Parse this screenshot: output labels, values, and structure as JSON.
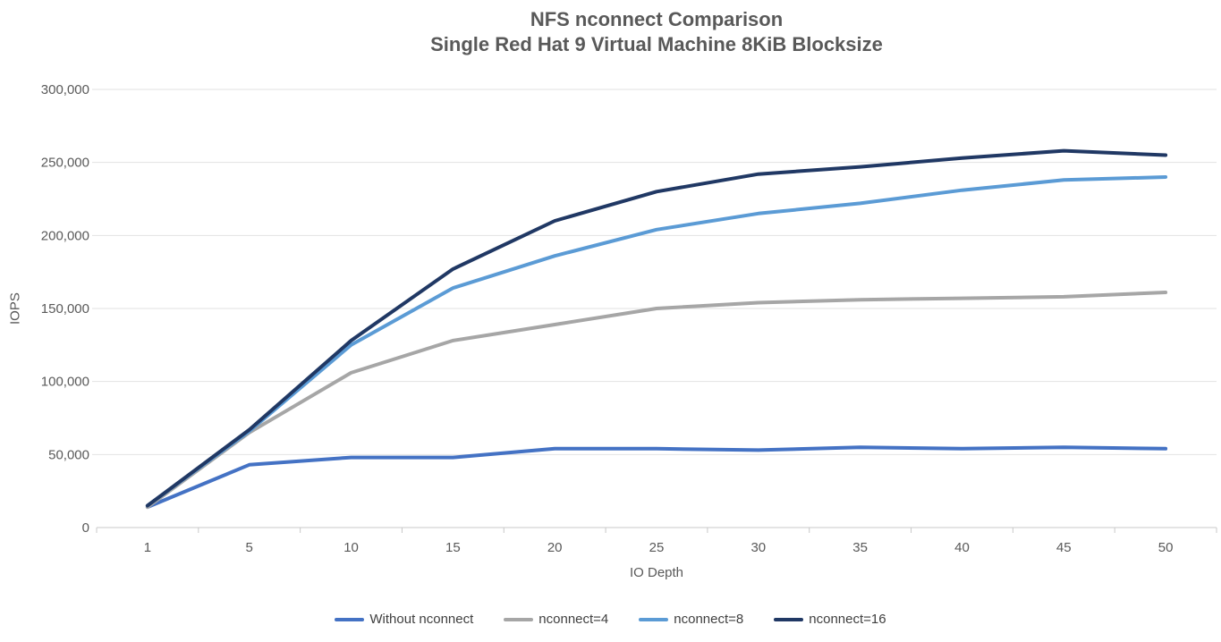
{
  "chart": {
    "title_line1": "NFS nconnect Comparison",
    "title_line2": "Single Red Hat 9 Virtual Machine 8KiB Blocksize",
    "xlabel": "IO Depth",
    "ylabel": "IOPS"
  },
  "chart_data": {
    "type": "line",
    "title": "NFS nconnect Comparison",
    "subtitle": "Single Red Hat 9 Virtual Machine 8KiB Blocksize",
    "xlabel": "IO Depth",
    "ylabel": "IOPS",
    "categories": [
      1,
      5,
      10,
      15,
      20,
      25,
      30,
      35,
      40,
      45,
      50
    ],
    "series": [
      {
        "name": "Without nconnect",
        "color": "#4472C4",
        "values": [
          14000,
          43000,
          48000,
          48000,
          54000,
          54000,
          53000,
          55000,
          54000,
          55000,
          54000
        ]
      },
      {
        "name": "nconnect=4",
        "color": "#A6A6A6",
        "values": [
          14000,
          65000,
          106000,
          128000,
          139000,
          150000,
          154000,
          156000,
          157000,
          158000,
          161000
        ]
      },
      {
        "name": "nconnect=8",
        "color": "#5B9BD5",
        "values": [
          15000,
          66000,
          125000,
          164000,
          186000,
          204000,
          215000,
          222000,
          231000,
          238000,
          240000
        ]
      },
      {
        "name": "nconnect=16",
        "color": "#203864",
        "values": [
          15000,
          67000,
          128000,
          177000,
          210000,
          230000,
          242000,
          247000,
          253000,
          258000,
          255000
        ]
      }
    ],
    "ylim": [
      0,
      300000
    ],
    "ytick_step": 50000,
    "yticks": [
      "0",
      "50,000",
      "100,000",
      "150,000",
      "200,000",
      "250,000",
      "300,000"
    ],
    "grid": true,
    "legend_position": "bottom"
  },
  "colors": {
    "gridline": "#E2E2E2",
    "axis_line": "#C8C8C8",
    "axis_text": "#595959",
    "title_text": "#595959",
    "legend_text": "#3F3F3F"
  }
}
